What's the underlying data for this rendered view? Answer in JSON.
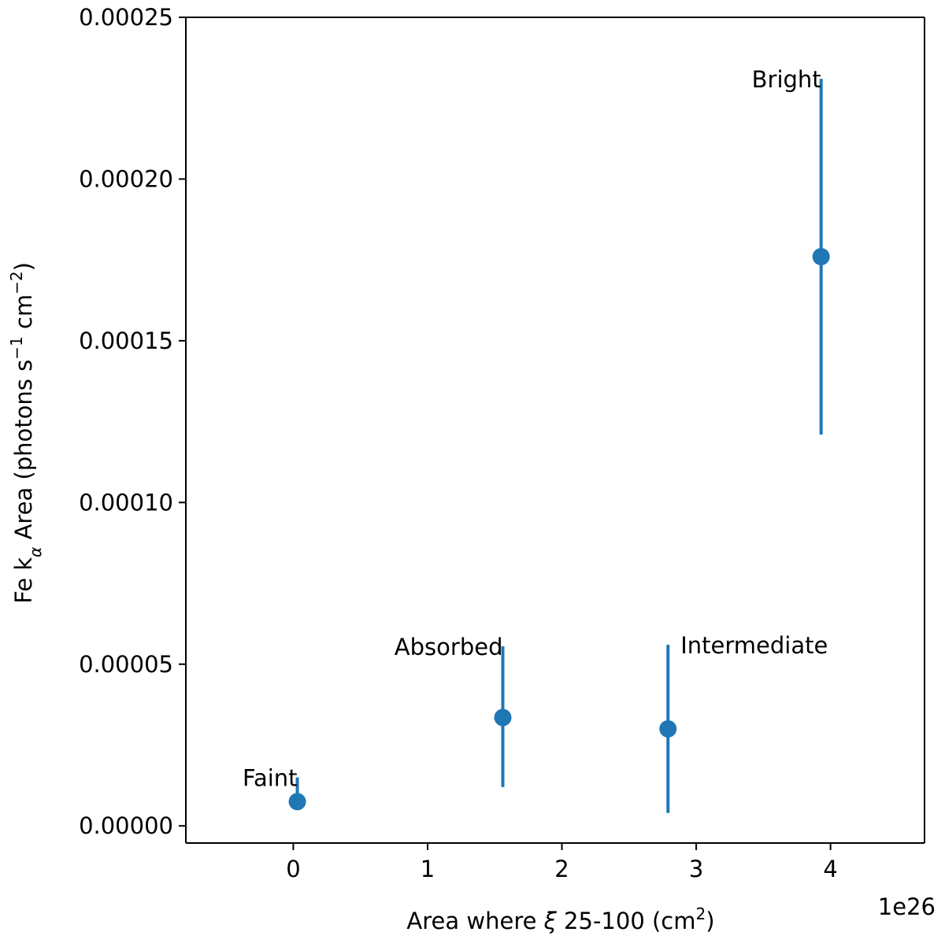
{
  "chart_data": {
    "type": "scatter",
    "title": "",
    "xlabel": {
      "pre": "Area where ",
      "symbol": "ξ",
      "post": " 25-100 (cm",
      "sup": "2",
      "end": ")"
    },
    "ylabel": {
      "pre": "Fe k",
      "sub": "α",
      "mid": " Area (photons s",
      "sup1": "−1",
      "mid2": " cm",
      "sup2": "−2",
      "end": ")"
    },
    "x_exponent_label": "1e26",
    "x_scale": 1e+26,
    "xlim": [
      -0.8,
      4.7
    ],
    "ylim": [
      -5.3e-06,
      0.00025
    ],
    "xticks": [
      0,
      1,
      2,
      3,
      4
    ],
    "xtick_labels": [
      "0",
      "1",
      "2",
      "3",
      "4"
    ],
    "yticks": [
      0,
      5e-05,
      0.0001,
      0.00015,
      0.0002,
      0.00025
    ],
    "ytick_labels": [
      "0.00000",
      "0.00005",
      "0.00010",
      "0.00015",
      "0.00020",
      "0.00025"
    ],
    "color": "#1f77b4",
    "points": [
      {
        "name": "Faint",
        "x": 0.03,
        "y": 7.5e-06,
        "err_low": 7.5e-06,
        "err_high": 1.5e-05,
        "label_anchor": "end"
      },
      {
        "name": "Absorbed",
        "x": 1.56,
        "y": 3.35e-05,
        "err_low": 1.2e-05,
        "err_high": 5.55e-05,
        "label_anchor": "end"
      },
      {
        "name": "Intermediate",
        "x": 2.79,
        "y": 3e-05,
        "err_low": 4e-06,
        "err_high": 5.6e-05,
        "label_anchor": "start"
      },
      {
        "name": "Bright",
        "x": 3.93,
        "y": 0.000176,
        "err_low": 0.000121,
        "err_high": 0.000231,
        "label_anchor": "end"
      }
    ]
  }
}
